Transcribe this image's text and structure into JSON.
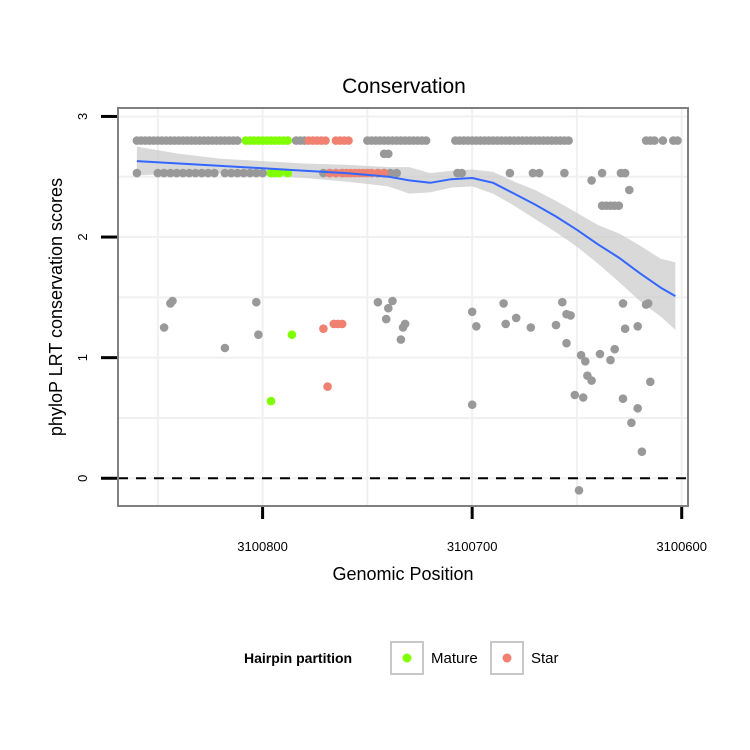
{
  "chart_data": {
    "type": "scatter",
    "title": "Conservation",
    "xlabel": "Genomic Position",
    "ylabel": "phyloP LRT conservation scores",
    "x_reversed": true,
    "xlim": [
      3100869,
      3100597
    ],
    "ylim": [
      -0.23,
      3.07
    ],
    "x_ticks": [
      3100800,
      3100700,
      3100600
    ],
    "x_tick_labels": [
      "3100800",
      "3100700",
      "3100600"
    ],
    "y_ticks": [
      0,
      1,
      2,
      3
    ],
    "y_tick_labels": [
      "0",
      "1",
      "2",
      "3"
    ],
    "reference_line": {
      "y": 0,
      "style": "dashed"
    },
    "grid": true,
    "legend": {
      "title": "Hairpin partition",
      "position": "bottom",
      "entries": [
        {
          "label": "Mature",
          "color": "#7fff00"
        },
        {
          "label": "Star",
          "color": "#f08070"
        }
      ]
    },
    "colors": {
      "other": "#999999",
      "Mature": "#7fff00",
      "Star": "#f08070",
      "smooth": "#3366ff",
      "ribbon": "#cccccc"
    },
    "series": [
      {
        "name": "Other",
        "points": [
          [
            3100860,
            2.8
          ],
          [
            3100858,
            2.8
          ],
          [
            3100856,
            2.8
          ],
          [
            3100854,
            2.8
          ],
          [
            3100852,
            2.8
          ],
          [
            3100850,
            2.8
          ],
          [
            3100848,
            2.8
          ],
          [
            3100846,
            2.8
          ],
          [
            3100844,
            2.8
          ],
          [
            3100842,
            2.8
          ],
          [
            3100840,
            2.8
          ],
          [
            3100838,
            2.8
          ],
          [
            3100836,
            2.8
          ],
          [
            3100834,
            2.8
          ],
          [
            3100832,
            2.8
          ],
          [
            3100830,
            2.8
          ],
          [
            3100828,
            2.8
          ],
          [
            3100826,
            2.8
          ],
          [
            3100824,
            2.8
          ],
          [
            3100822,
            2.8
          ],
          [
            3100820,
            2.8
          ],
          [
            3100818,
            2.8
          ],
          [
            3100816,
            2.8
          ],
          [
            3100814,
            2.8
          ],
          [
            3100812,
            2.8
          ],
          [
            3100784,
            2.8
          ],
          [
            3100782,
            2.8
          ],
          [
            3100780,
            2.8
          ],
          [
            3100750,
            2.8
          ],
          [
            3100748,
            2.8
          ],
          [
            3100746,
            2.8
          ],
          [
            3100744,
            2.8
          ],
          [
            3100742,
            2.8
          ],
          [
            3100740,
            2.8
          ],
          [
            3100738,
            2.8
          ],
          [
            3100736,
            2.8
          ],
          [
            3100734,
            2.8
          ],
          [
            3100732,
            2.8
          ],
          [
            3100730,
            2.8
          ],
          [
            3100728,
            2.8
          ],
          [
            3100726,
            2.8
          ],
          [
            3100724,
            2.8
          ],
          [
            3100722,
            2.8
          ],
          [
            3100708,
            2.8
          ],
          [
            3100706,
            2.8
          ],
          [
            3100704,
            2.8
          ],
          [
            3100702,
            2.8
          ],
          [
            3100700,
            2.8
          ],
          [
            3100698,
            2.8
          ],
          [
            3100696,
            2.8
          ],
          [
            3100694,
            2.8
          ],
          [
            3100692,
            2.8
          ],
          [
            3100690,
            2.8
          ],
          [
            3100688,
            2.8
          ],
          [
            3100686,
            2.8
          ],
          [
            3100684,
            2.8
          ],
          [
            3100682,
            2.8
          ],
          [
            3100680,
            2.8
          ],
          [
            3100678,
            2.8
          ],
          [
            3100676,
            2.8
          ],
          [
            3100674,
            2.8
          ],
          [
            3100672,
            2.8
          ],
          [
            3100670,
            2.8
          ],
          [
            3100668,
            2.8
          ],
          [
            3100666,
            2.8
          ],
          [
            3100664,
            2.8
          ],
          [
            3100662,
            2.8
          ],
          [
            3100660,
            2.8
          ],
          [
            3100658,
            2.8
          ],
          [
            3100656,
            2.8
          ],
          [
            3100654,
            2.8
          ],
          [
            3100617,
            2.8
          ],
          [
            3100615,
            2.8
          ],
          [
            3100613,
            2.8
          ],
          [
            3100609,
            2.8
          ],
          [
            3100604,
            2.8
          ],
          [
            3100602,
            2.8
          ],
          [
            3100860,
            2.53
          ],
          [
            3100850,
            2.53
          ],
          [
            3100847,
            2.53
          ],
          [
            3100844,
            2.53
          ],
          [
            3100841,
            2.53
          ],
          [
            3100838,
            2.53
          ],
          [
            3100835,
            2.53
          ],
          [
            3100832,
            2.53
          ],
          [
            3100829,
            2.53
          ],
          [
            3100826,
            2.53
          ],
          [
            3100823,
            2.53
          ],
          [
            3100818,
            2.53
          ],
          [
            3100815,
            2.53
          ],
          [
            3100812,
            2.53
          ],
          [
            3100809,
            2.53
          ],
          [
            3100806,
            2.53
          ],
          [
            3100803,
            2.53
          ],
          [
            3100800,
            2.53
          ],
          [
            3100771,
            2.53
          ],
          [
            3100768,
            2.53
          ],
          [
            3100765,
            2.53
          ],
          [
            3100762,
            2.53
          ],
          [
            3100745,
            2.53
          ],
          [
            3100742,
            2.53
          ],
          [
            3100739,
            2.53
          ],
          [
            3100736,
            2.53
          ],
          [
            3100707,
            2.53
          ],
          [
            3100705,
            2.53
          ],
          [
            3100682,
            2.53
          ],
          [
            3100671,
            2.53
          ],
          [
            3100668,
            2.53
          ],
          [
            3100656,
            2.53
          ],
          [
            3100638,
            2.53
          ],
          [
            3100629,
            2.53
          ],
          [
            3100627,
            2.53
          ],
          [
            3100742,
            2.69
          ],
          [
            3100740,
            2.69
          ],
          [
            3100625,
            2.39
          ],
          [
            3100643,
            2.47
          ],
          [
            3100630,
            2.26
          ],
          [
            3100632,
            2.26
          ],
          [
            3100634,
            2.26
          ],
          [
            3100636,
            2.26
          ],
          [
            3100638,
            2.26
          ],
          [
            3100847,
            1.25
          ],
          [
            3100844,
            1.45
          ],
          [
            3100843,
            1.47
          ],
          [
            3100818,
            1.08
          ],
          [
            3100803,
            1.46
          ],
          [
            3100802,
            1.19
          ],
          [
            3100745,
            1.46
          ],
          [
            3100738,
            1.47
          ],
          [
            3100740,
            1.41
          ],
          [
            3100741,
            1.32
          ],
          [
            3100733,
            1.25
          ],
          [
            3100732,
            1.28
          ],
          [
            3100734,
            1.15
          ],
          [
            3100700,
            1.38
          ],
          [
            3100698,
            1.26
          ],
          [
            3100685,
            1.45
          ],
          [
            3100684,
            1.28
          ],
          [
            3100679,
            1.33
          ],
          [
            3100672,
            1.25
          ],
          [
            3100660,
            1.27
          ],
          [
            3100657,
            1.46
          ],
          [
            3100655,
            1.36
          ],
          [
            3100653,
            1.35
          ],
          [
            3100655,
            1.12
          ],
          [
            3100648,
            1.02
          ],
          [
            3100646,
            0.97
          ],
          [
            3100645,
            0.85
          ],
          [
            3100643,
            0.81
          ],
          [
            3100639,
            1.03
          ],
          [
            3100634,
            0.98
          ],
          [
            3100632,
            1.07
          ],
          [
            3100627,
            1.24
          ],
          [
            3100628,
            1.45
          ],
          [
            3100621,
            1.26
          ],
          [
            3100617,
            1.44
          ],
          [
            3100616,
            1.45
          ],
          [
            3100651,
            0.69
          ],
          [
            3100647,
            0.67
          ],
          [
            3100628,
            0.66
          ],
          [
            3100624,
            0.46
          ],
          [
            3100621,
            0.58
          ],
          [
            3100619,
            0.22
          ],
          [
            3100615,
            0.8
          ],
          [
            3100700,
            0.61
          ],
          [
            3100649,
            -0.1
          ]
        ]
      },
      {
        "name": "Mature",
        "points": [
          [
            3100808,
            2.8
          ],
          [
            3100806,
            2.8
          ],
          [
            3100804,
            2.8
          ],
          [
            3100802,
            2.8
          ],
          [
            3100800,
            2.8
          ],
          [
            3100798,
            2.8
          ],
          [
            3100796,
            2.8
          ],
          [
            3100794,
            2.8
          ],
          [
            3100792,
            2.8
          ],
          [
            3100790,
            2.8
          ],
          [
            3100788,
            2.8
          ],
          [
            3100796,
            2.53
          ],
          [
            3100794,
            2.53
          ],
          [
            3100792,
            2.53
          ],
          [
            3100788,
            2.53
          ],
          [
            3100786,
            1.19
          ],
          [
            3100796,
            0.64
          ]
        ]
      },
      {
        "name": "Star",
        "points": [
          [
            3100778,
            2.8
          ],
          [
            3100776,
            2.8
          ],
          [
            3100774,
            2.8
          ],
          [
            3100772,
            2.8
          ],
          [
            3100770,
            2.8
          ],
          [
            3100765,
            2.8
          ],
          [
            3100763,
            2.8
          ],
          [
            3100761,
            2.8
          ],
          [
            3100759,
            2.8
          ],
          [
            3100768,
            2.53
          ],
          [
            3100765,
            2.53
          ],
          [
            3100762,
            2.53
          ],
          [
            3100760,
            2.53
          ],
          [
            3100758,
            2.53
          ],
          [
            3100756,
            2.53
          ],
          [
            3100754,
            2.53
          ],
          [
            3100752,
            2.53
          ],
          [
            3100750,
            2.53
          ],
          [
            3100748,
            2.53
          ],
          [
            3100745,
            2.53
          ],
          [
            3100742,
            2.53
          ],
          [
            3100766,
            1.28
          ],
          [
            3100764,
            1.28
          ],
          [
            3100762,
            1.28
          ],
          [
            3100771,
            1.24
          ],
          [
            3100769,
            0.76
          ]
        ]
      }
    ],
    "smooth": {
      "x": [
        3100860,
        3100840,
        3100820,
        3100800,
        3100780,
        3100760,
        3100740,
        3100730,
        3100720,
        3100710,
        3100700,
        3100690,
        3100680,
        3100670,
        3100660,
        3100650,
        3100640,
        3100630,
        3100620,
        3100610,
        3100603
      ],
      "y": [
        2.63,
        2.61,
        2.59,
        2.57,
        2.55,
        2.53,
        2.5,
        2.47,
        2.45,
        2.48,
        2.49,
        2.45,
        2.36,
        2.27,
        2.17,
        2.06,
        1.94,
        1.83,
        1.7,
        1.58,
        1.51
      ],
      "lower": [
        2.51,
        2.53,
        2.53,
        2.51,
        2.49,
        2.46,
        2.42,
        2.36,
        2.37,
        2.41,
        2.42,
        2.36,
        2.26,
        2.15,
        2.04,
        1.92,
        1.78,
        1.63,
        1.47,
        1.34,
        1.23
      ],
      "upper": [
        2.75,
        2.69,
        2.65,
        2.63,
        2.61,
        2.6,
        2.58,
        2.58,
        2.53,
        2.55,
        2.56,
        2.54,
        2.46,
        2.39,
        2.3,
        2.2,
        2.1,
        2.03,
        1.93,
        1.82,
        1.79
      ]
    }
  }
}
